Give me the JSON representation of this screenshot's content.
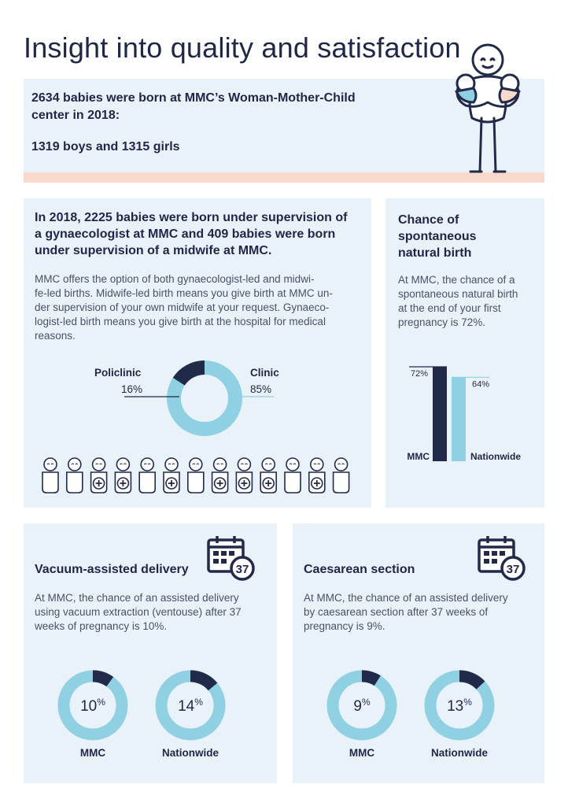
{
  "page": {
    "title": "Insight into quality and satisfaction"
  },
  "intro": {
    "line1": "2634 babies were born at MMC’s Woman-Mother-Child",
    "line2": "center in 2018:",
    "line3": "1319 boys and 1315 girls"
  },
  "supervision": {
    "heading_lines": [
      "In 2018, 2225 babies were born under supervision of",
      "a gynaecologist at MMC and 409 babies were born",
      "under supervision of a midwife at MMC."
    ],
    "body_lines": [
      "MMC offers the option of both gynaecologist-led and midwi-",
      "fe-led births. Midwife-led birth means you give birth at MMC un-",
      "der supervision of your own midwife at your request. Gynaeco-",
      "logist-led birth means you give birth at the hospital for medical",
      "reasons."
    ],
    "babies_marked": [
      false,
      false,
      true,
      true,
      false,
      true,
      false,
      true,
      true,
      true,
      false,
      true,
      false
    ]
  },
  "spontaneous": {
    "heading_lines": [
      "Chance of",
      "spontaneous",
      "natural birth"
    ],
    "body_lines": [
      "At MMC, the chance of a",
      "spontaneous natural birth",
      "at the end of your first",
      "pregnancy is 72%."
    ]
  },
  "vacuum": {
    "heading": "Vacuum-assisted delivery",
    "body_lines": [
      "At MMC, the chance of an assisted delivery",
      "using vacuum extraction (ventouse) after 37",
      "weeks of pregnancy is 10%."
    ],
    "calendar_number": "37"
  },
  "caesarean": {
    "heading": "Caesarean section",
    "body_lines": [
      "At MMC, the chance of an assisted delivery",
      "by caesarean section after 37 weeks of",
      "pregnancy is 9%."
    ],
    "calendar_number": "37"
  },
  "colors": {
    "navy": "#222a4a",
    "light_blue": "#8fd0e3",
    "panel_bg": "#eaf2f9",
    "peach": "#f8d9cc"
  },
  "chart_data": [
    {
      "type": "pie",
      "labels": [
        "Policlinic",
        "Clinic"
      ],
      "values": [
        16,
        85
      ],
      "value_labels": [
        "16%",
        "85%"
      ],
      "colors": [
        "#222a4a",
        "#8fd0e3"
      ]
    },
    {
      "type": "bar",
      "categories": [
        "MMC",
        "Nationwide"
      ],
      "values": [
        72,
        64
      ],
      "value_labels": [
        "72%",
        "64%"
      ],
      "colors": [
        "#222a4a",
        "#8fd0e3"
      ]
    },
    {
      "type": "pie",
      "name": "MMC",
      "value": 10,
      "number": "10",
      "unit": "%",
      "colors": [
        "#222a4a",
        "#8fd0e3"
      ]
    },
    {
      "type": "pie",
      "name": "Nationwide",
      "value": 14,
      "number": "14",
      "unit": "%",
      "colors": [
        "#222a4a",
        "#8fd0e3"
      ]
    },
    {
      "type": "pie",
      "name": "MMC",
      "value": 9,
      "number": "9",
      "unit": "%",
      "colors": [
        "#222a4a",
        "#8fd0e3"
      ]
    },
    {
      "type": "pie",
      "name": "Nationwide",
      "value": 13,
      "number": "13",
      "unit": "%",
      "colors": [
        "#222a4a",
        "#8fd0e3"
      ]
    }
  ]
}
